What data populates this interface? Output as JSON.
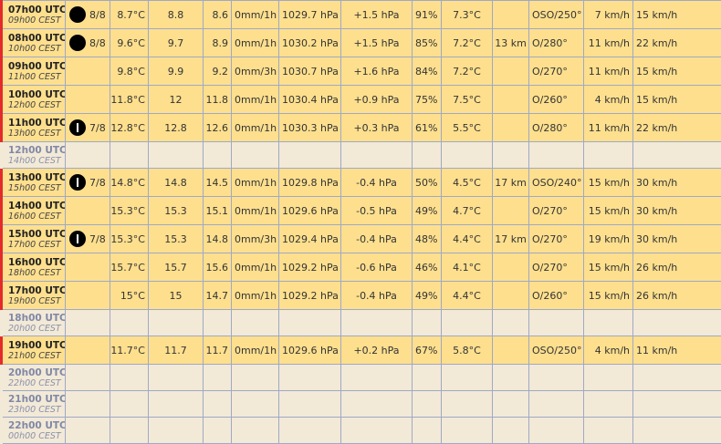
{
  "rows": [
    {
      "utc": "07h00 UTC",
      "local": "09h00 CEST",
      "full": true,
      "neb": "8/8",
      "neb_icon": "overcast-icon",
      "temp": "8.7°C",
      "c1": "8.8",
      "c2": "8.6",
      "rain": "0mm/1h",
      "press": "1029.7 hPa",
      "trend": "+1.5 hPa",
      "hum": "91%",
      "dew": "7.3°C",
      "vis": "",
      "dir": "OSO/250°",
      "wind": "7 km/h",
      "gust": "15 km/h"
    },
    {
      "utc": "08h00 UTC",
      "local": "10h00 CEST",
      "full": true,
      "neb": "8/8",
      "neb_icon": "overcast-icon",
      "temp": "9.6°C",
      "c1": "9.7",
      "c2": "8.9",
      "rain": "0mm/1h",
      "press": "1030.2 hPa",
      "trend": "+1.5 hPa",
      "hum": "85%",
      "dew": "7.2°C",
      "vis": "13 km",
      "dir": "O/280°",
      "wind": "11 km/h",
      "gust": "22 km/h"
    },
    {
      "utc": "09h00 UTC",
      "local": "11h00 CEST",
      "full": true,
      "neb": "",
      "neb_icon": "",
      "temp": "9.8°C",
      "c1": "9.9",
      "c2": "9.2",
      "rain": "0mm/3h",
      "press": "1030.7 hPa",
      "trend": "+1.6 hPa",
      "hum": "84%",
      "dew": "7.2°C",
      "vis": "",
      "dir": "O/270°",
      "wind": "11 km/h",
      "gust": "15 km/h"
    },
    {
      "utc": "10h00 UTC",
      "local": "12h00 CEST",
      "full": true,
      "neb": "",
      "neb_icon": "",
      "temp": "11.8°C",
      "c1": "12",
      "c2": "11.8",
      "rain": "0mm/1h",
      "press": "1030.4 hPa",
      "trend": "+0.9 hPa",
      "hum": "75%",
      "dew": "7.5°C",
      "vis": "",
      "dir": "O/260°",
      "wind": "4 km/h",
      "gust": "15 km/h"
    },
    {
      "utc": "11h00 UTC",
      "local": "13h00 CEST",
      "full": true,
      "neb": "7/8",
      "neb_icon": "mostly-cloudy-icon",
      "temp": "12.8°C",
      "c1": "12.8",
      "c2": "12.6",
      "rain": "0mm/1h",
      "press": "1030.3 hPa",
      "trend": "+0.3 hPa",
      "hum": "61%",
      "dew": "5.5°C",
      "vis": "",
      "dir": "O/280°",
      "wind": "11 km/h",
      "gust": "22 km/h"
    },
    {
      "utc": "12h00 UTC",
      "local": "14h00 CEST",
      "full": false
    },
    {
      "utc": "13h00 UTC",
      "local": "15h00 CEST",
      "full": true,
      "neb": "7/8",
      "neb_icon": "mostly-cloudy-icon",
      "temp": "14.8°C",
      "c1": "14.8",
      "c2": "14.5",
      "rain": "0mm/1h",
      "press": "1029.8 hPa",
      "trend": "-0.4 hPa",
      "hum": "50%",
      "dew": "4.5°C",
      "vis": "17 km",
      "dir": "OSO/240°",
      "wind": "15 km/h",
      "gust": "30 km/h"
    },
    {
      "utc": "14h00 UTC",
      "local": "16h00 CEST",
      "full": true,
      "neb": "",
      "neb_icon": "",
      "temp": "15.3°C",
      "c1": "15.3",
      "c2": "15.1",
      "rain": "0mm/1h",
      "press": "1029.6 hPa",
      "trend": "-0.5 hPa",
      "hum": "49%",
      "dew": "4.7°C",
      "vis": "",
      "dir": "O/270°",
      "wind": "15 km/h",
      "gust": "30 km/h"
    },
    {
      "utc": "15h00 UTC",
      "local": "17h00 CEST",
      "full": true,
      "neb": "7/8",
      "neb_icon": "mostly-cloudy-icon",
      "temp": "15.3°C",
      "c1": "15.3",
      "c2": "14.8",
      "rain": "0mm/3h",
      "press": "1029.4 hPa",
      "trend": "-0.4 hPa",
      "hum": "48%",
      "dew": "4.4°C",
      "vis": "17 km",
      "dir": "O/270°",
      "wind": "19 km/h",
      "gust": "30 km/h"
    },
    {
      "utc": "16h00 UTC",
      "local": "18h00 CEST",
      "full": true,
      "neb": "",
      "neb_icon": "",
      "temp": "15.7°C",
      "c1": "15.7",
      "c2": "15.6",
      "rain": "0mm/1h",
      "press": "1029.2 hPa",
      "trend": "-0.6 hPa",
      "hum": "46%",
      "dew": "4.1°C",
      "vis": "",
      "dir": "O/270°",
      "wind": "15 km/h",
      "gust": "26 km/h"
    },
    {
      "utc": "17h00 UTC",
      "local": "19h00 CEST",
      "full": true,
      "neb": "",
      "neb_icon": "",
      "temp": "15°C",
      "c1": "15",
      "c2": "14.7",
      "rain": "0mm/1h",
      "press": "1029.2 hPa",
      "trend": "-0.4 hPa",
      "hum": "49%",
      "dew": "4.4°C",
      "vis": "",
      "dir": "O/260°",
      "wind": "15 km/h",
      "gust": "26 km/h"
    },
    {
      "utc": "18h00 UTC",
      "local": "20h00 CEST",
      "full": false
    },
    {
      "utc": "19h00 UTC",
      "local": "21h00 CEST",
      "full": true,
      "neb": "",
      "neb_icon": "",
      "temp": "11.7°C",
      "c1": "11.7",
      "c2": "11.7",
      "rain": "0mm/1h",
      "press": "1029.6 hPa",
      "trend": "+0.2 hPa",
      "hum": "67%",
      "dew": "5.8°C",
      "vis": "",
      "dir": "OSO/250°",
      "wind": "4 km/h",
      "gust": "11 km/h"
    },
    {
      "utc": "20h00 UTC",
      "local": "22h00 CEST",
      "full": false
    },
    {
      "utc": "21h00 UTC",
      "local": "23h00 CEST",
      "full": false
    },
    {
      "utc": "22h00 UTC",
      "local": "00h00 CEST",
      "full": false
    }
  ]
}
